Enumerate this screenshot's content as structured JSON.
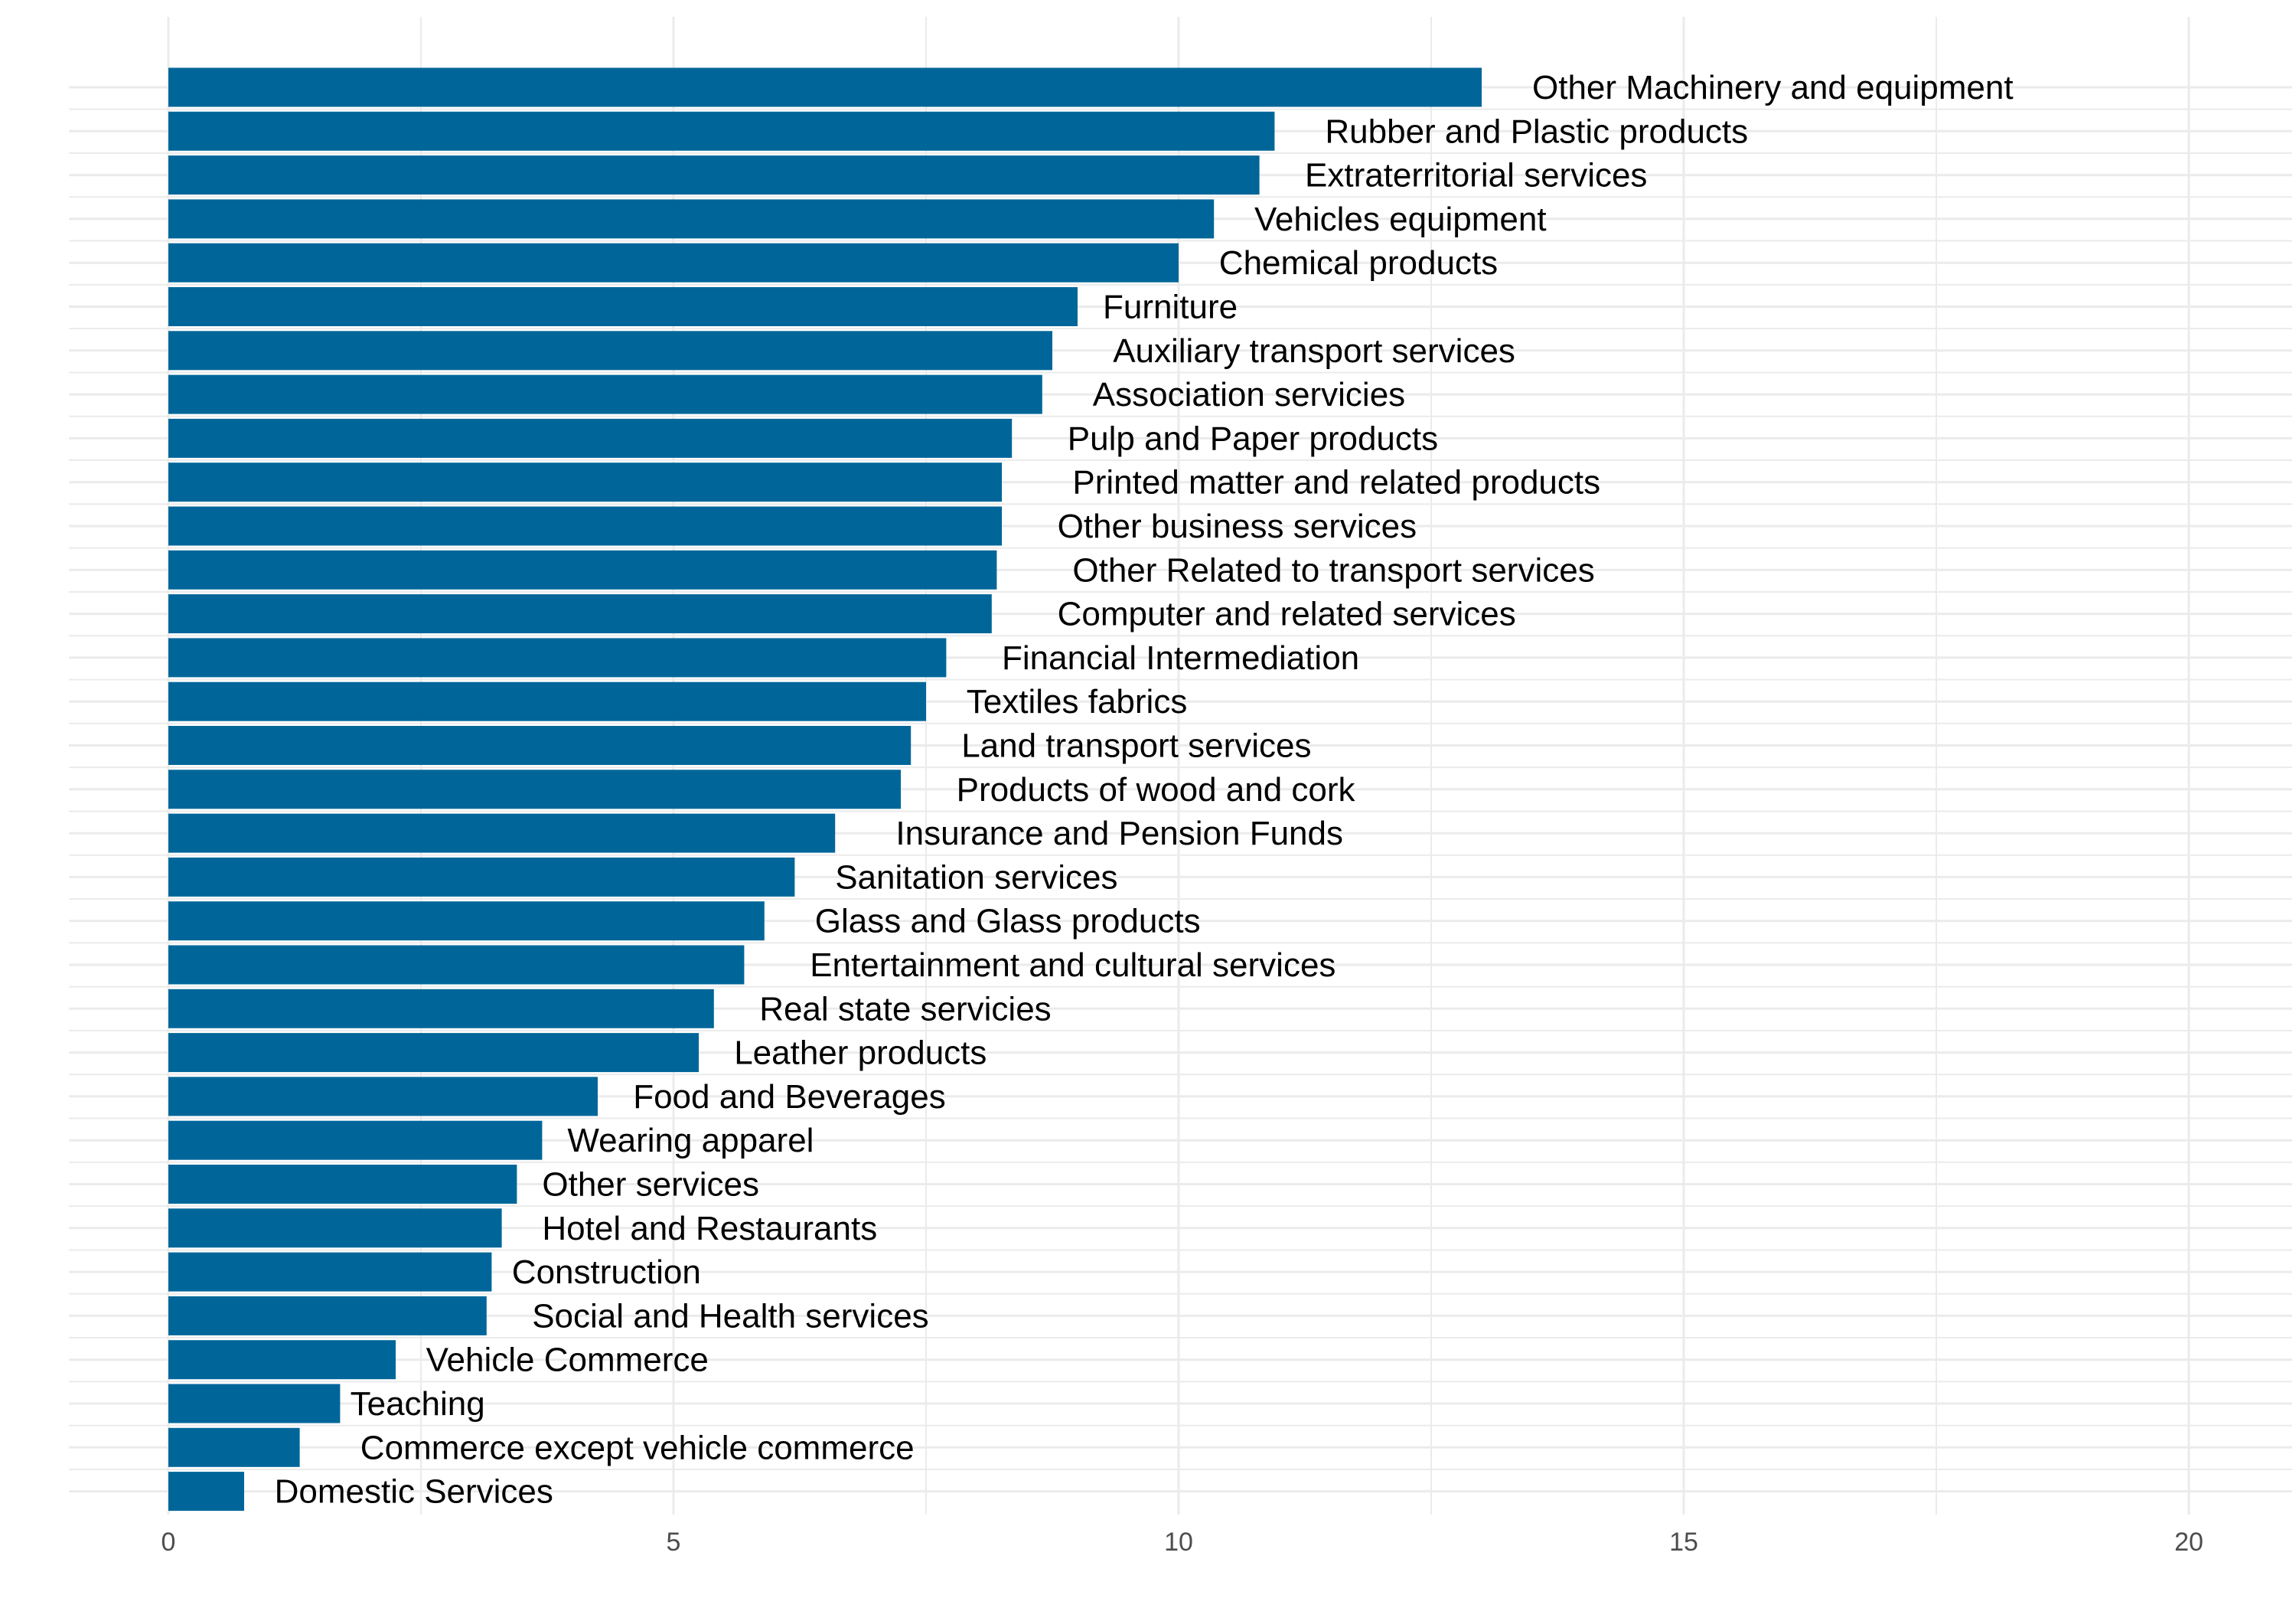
{
  "chart_data": {
    "type": "bar",
    "orientation": "horizontal",
    "title": "",
    "xlabel": "",
    "ylabel": "",
    "xlim": [
      0,
      20.5
    ],
    "x_ticks": [
      0,
      5,
      10,
      15,
      20
    ],
    "grid": true,
    "bar_color": "#00669a",
    "grid_color": "#ebebeb",
    "categories": [
      "Other Machinery and equipment",
      "Rubber and Plastic products",
      "Extraterritorial services",
      "Vehicles equipment",
      "Chemical products",
      "Furniture",
      "Auxiliary transport services",
      "Association servicies",
      "Pulp and Paper products",
      "Printed matter and related products",
      "Other business services",
      "Other Related to transport services",
      "Computer and related services",
      "Financial Intermediation",
      "Textiles fabrics",
      "Land transport services",
      "Products of wood and cork",
      "Insurance and Pension Funds",
      "Sanitation services",
      "Glass and Glass products",
      "Entertainment and cultural services",
      "Real state servicies",
      "Leather products",
      "Food and Beverages",
      "Wearing apparel",
      "Other services",
      "Hotel and Restaurants",
      "Construction",
      "Social and Health services",
      "Vehicle Commerce",
      "Teaching",
      "Commerce except vehicle commerce",
      "Domestic Services"
    ],
    "values": [
      13.0,
      10.95,
      10.8,
      10.35,
      10.0,
      9.0,
      8.75,
      8.65,
      8.35,
      8.25,
      8.25,
      8.2,
      8.15,
      7.7,
      7.5,
      7.35,
      7.25,
      6.6,
      6.2,
      5.9,
      5.7,
      5.4,
      5.25,
      4.25,
      3.7,
      3.45,
      3.3,
      3.2,
      3.15,
      2.25,
      1.7,
      1.3,
      0.75
    ],
    "label_value": [
      13.5,
      11.45,
      11.25,
      10.75,
      10.4,
      9.25,
      9.35,
      9.15,
      8.9,
      8.95,
      8.8,
      8.95,
      8.8,
      8.25,
      7.9,
      7.85,
      7.8,
      7.2,
      6.6,
      6.4,
      6.35,
      5.85,
      5.6,
      4.6,
      3.95,
      3.7,
      3.7,
      3.4,
      3.6,
      2.55,
      1.8,
      1.9,
      1.05
    ]
  }
}
